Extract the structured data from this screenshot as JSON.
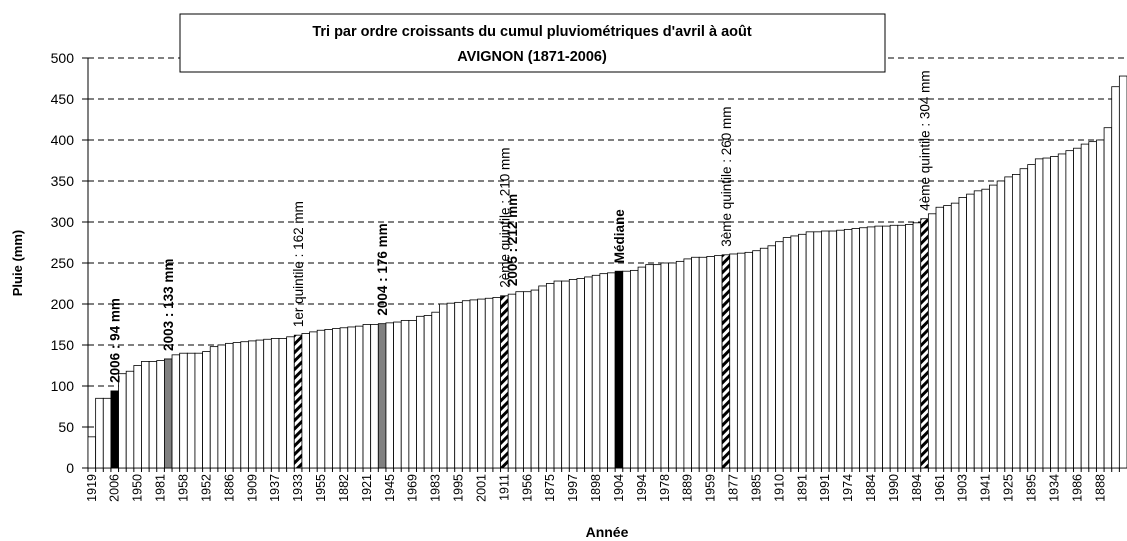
{
  "chart_data": {
    "type": "bar",
    "title": "Tri par ordre croissants du cumul pluviométriques d'avril à août",
    "subtitle": "AVIGNON (1871-2006)",
    "y_label": "Pluie (mm)",
    "x_label": "Année",
    "categories": [
      "1919",
      null,
      null,
      "2006",
      null,
      null,
      "1950",
      null,
      null,
      "1981",
      null,
      null,
      "1958",
      null,
      null,
      "1952",
      null,
      null,
      "1886",
      null,
      null,
      "1909",
      null,
      null,
      "1937",
      null,
      null,
      "1933",
      null,
      null,
      "1955",
      null,
      null,
      "1882",
      null,
      null,
      "1921",
      null,
      null,
      "1945",
      null,
      null,
      "1969",
      null,
      null,
      "1983",
      null,
      null,
      "1995",
      null,
      null,
      "2001",
      null,
      null,
      "1911",
      null,
      null,
      "1956",
      null,
      null,
      "1875",
      null,
      null,
      "1997",
      null,
      null,
      "1898",
      null,
      null,
      "1904",
      null,
      null,
      "1994",
      null,
      null,
      "1978",
      null,
      null,
      "1889",
      null,
      null,
      "1959",
      null,
      null,
      "1877",
      null,
      null,
      "1985",
      null,
      null,
      "1910",
      null,
      null,
      "1891",
      null,
      null,
      "1991",
      null,
      null,
      "1974",
      null,
      null,
      "1884",
      null,
      null,
      "1990",
      null,
      null,
      "1894",
      null,
      null,
      "1961",
      null,
      null,
      "1903",
      null,
      null,
      "1941",
      null,
      null,
      "1925",
      null,
      null,
      "1895",
      null,
      null,
      "1934",
      null,
      null,
      "1986",
      null,
      null,
      "1888",
      null,
      null,
      null
    ],
    "values": [
      38,
      85,
      85,
      94,
      115,
      118,
      125,
      130,
      130,
      131,
      133,
      138,
      140,
      140,
      140,
      142,
      148,
      150,
      152,
      153,
      154,
      155,
      156,
      157,
      158,
      158,
      160,
      162,
      164,
      166,
      168,
      169,
      170,
      171,
      172,
      173,
      175,
      175,
      176,
      177,
      178,
      180,
      180,
      185,
      186,
      190,
      200,
      201,
      202,
      204,
      205,
      206,
      207,
      208,
      210,
      212,
      215,
      215,
      217,
      222,
      225,
      228,
      228,
      230,
      231,
      233,
      235,
      237,
      238,
      240,
      240,
      241,
      245,
      248,
      248,
      250,
      250,
      252,
      255,
      257,
      257,
      258,
      259,
      260,
      261,
      262,
      263,
      265,
      268,
      271,
      276,
      281,
      283,
      285,
      288,
      288,
      289,
      289,
      290,
      291,
      292,
      293,
      294,
      295,
      295,
      296,
      296,
      297,
      299,
      304,
      310,
      318,
      320,
      323,
      330,
      334,
      338,
      340,
      345,
      350,
      355,
      358,
      365,
      370,
      377,
      378,
      380,
      383,
      387,
      390,
      395,
      398,
      400,
      415,
      465,
      478
    ],
    "colors": [
      "#fff",
      "#fff",
      "#fff",
      "#000",
      "#fff",
      "#fff",
      "#fff",
      "#fff",
      "#fff",
      "#fff",
      "#808080",
      "#fff",
      "#fff",
      "#fff",
      "#fff",
      "#fff",
      "#fff",
      "#fff",
      "#fff",
      "#fff",
      "#fff",
      "#fff",
      "#fff",
      "#fff",
      "#fff",
      "#fff",
      "#fff",
      "hatch",
      "#fff",
      "#fff",
      "#fff",
      "#fff",
      "#fff",
      "#fff",
      "#fff",
      "#fff",
      "#fff",
      "#fff",
      "#808080",
      "#fff",
      "#fff",
      "#fff",
      "#fff",
      "#fff",
      "#fff",
      "#fff",
      "#fff",
      "#fff",
      "#fff",
      "#fff",
      "#fff",
      "#fff",
      "#fff",
      "#fff",
      "hatch",
      "#fff",
      "#fff",
      "#fff",
      "#fff",
      "#fff",
      "#fff",
      "#fff",
      "#fff",
      "#fff",
      "#fff",
      "#fff",
      "#fff",
      "#fff",
      "#fff",
      "#000",
      "#fff",
      "#fff",
      "#fff",
      "#fff",
      "#fff",
      "#fff",
      "#fff",
      "#fff",
      "#fff",
      "#fff",
      "#fff",
      "#fff",
      "#fff",
      "hatch",
      "#fff",
      "#fff",
      "#fff",
      "#fff",
      "#fff",
      "#fff",
      "#fff",
      "#fff",
      "#fff",
      "#fff",
      "#fff",
      "#fff",
      "#fff",
      "#fff",
      "#fff",
      "#fff",
      "#fff",
      "#fff",
      "#fff",
      "#fff",
      "#fff",
      "#fff",
      "#fff",
      "#fff",
      "#fff",
      "hatch",
      "#fff",
      "#fff",
      "#fff",
      "#fff",
      "#fff",
      "#fff",
      "#fff",
      "#fff",
      "#fff",
      "#fff",
      "#fff",
      "#fff",
      "#fff",
      "#fff",
      "#fff",
      "#fff",
      "#fff",
      "#fff",
      "#fff",
      "#fff",
      "#fff",
      "#fff",
      "#fff",
      "#fff",
      "#fff",
      "#fff"
    ],
    "annotations": [
      {
        "text": "2006 : 94 mm",
        "bar": 3,
        "bold": true
      },
      {
        "text": "2003 : 133 mm",
        "bar": 10,
        "bold": true
      },
      {
        "text": "1er quintile : 162 mm",
        "bar": 27,
        "bold": false
      },
      {
        "text": "2004 : 176 mm",
        "bar": 38,
        "bold": true
      },
      {
        "text": "2ème quintile : 210 mm",
        "bar": 54,
        "bold": false
      },
      {
        "text": "2005 : 212 mm",
        "bar": 55,
        "bold": true
      },
      {
        "text": "Médiane",
        "bar": 69,
        "bold": true
      },
      {
        "text": "3ème quintile : 260 mm",
        "bar": 83,
        "bold": false
      },
      {
        "text": "4ème quintile : 304 mm",
        "bar": 109,
        "bold": false
      }
    ],
    "ylim": [
      0,
      500
    ],
    "yticks": [
      0,
      50,
      100,
      150,
      200,
      250,
      300,
      350,
      400,
      450,
      500
    ],
    "grid": true
  }
}
